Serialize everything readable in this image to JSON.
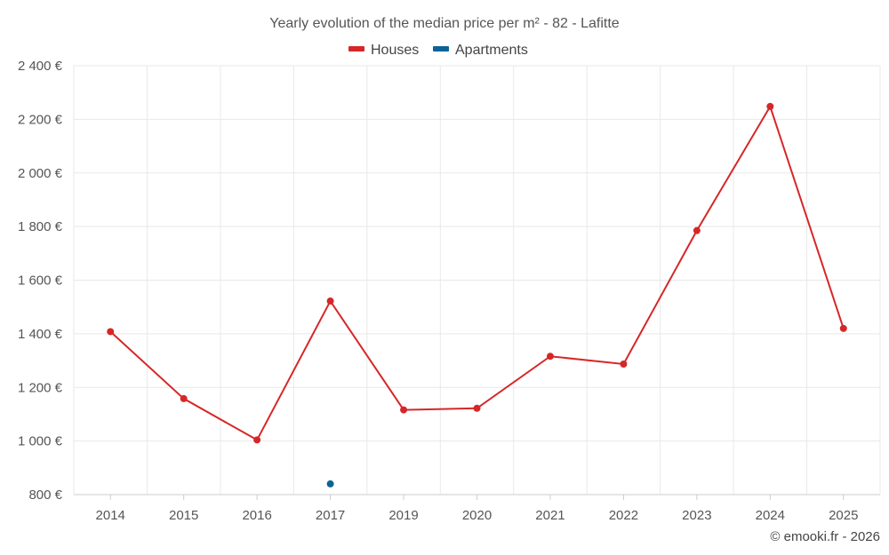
{
  "chart_data": {
    "type": "line",
    "title": "Yearly evolution of the median price per m² - 82 - Lafitte",
    "categories": [
      "2014",
      "2015",
      "2016",
      "2017",
      "2019",
      "2020",
      "2021",
      "2022",
      "2023",
      "2024",
      "2025"
    ],
    "series": [
      {
        "name": "Houses",
        "color": "#d62728",
        "values": [
          1408,
          1158,
          1004,
          1522,
          1116,
          1122,
          1316,
          1287,
          1785,
          2248,
          1420
        ]
      },
      {
        "name": "Apartments",
        "color": "#0b6397",
        "values": [
          null,
          null,
          null,
          840,
          null,
          null,
          null,
          null,
          null,
          null,
          null
        ]
      }
    ],
    "ylim": [
      800,
      2400
    ],
    "yticks": [
      800,
      1000,
      1200,
      1400,
      1600,
      1800,
      2000,
      2200,
      2400
    ],
    "ytick_labels": [
      "800 €",
      "1 000 €",
      "1 200 €",
      "1 400 €",
      "1 600 €",
      "1 800 €",
      "2 000 €",
      "2 200 €",
      "2 400 €"
    ],
    "grid": true,
    "legend_position": "top-center"
  },
  "credit": "© emooki.fr - 2026"
}
